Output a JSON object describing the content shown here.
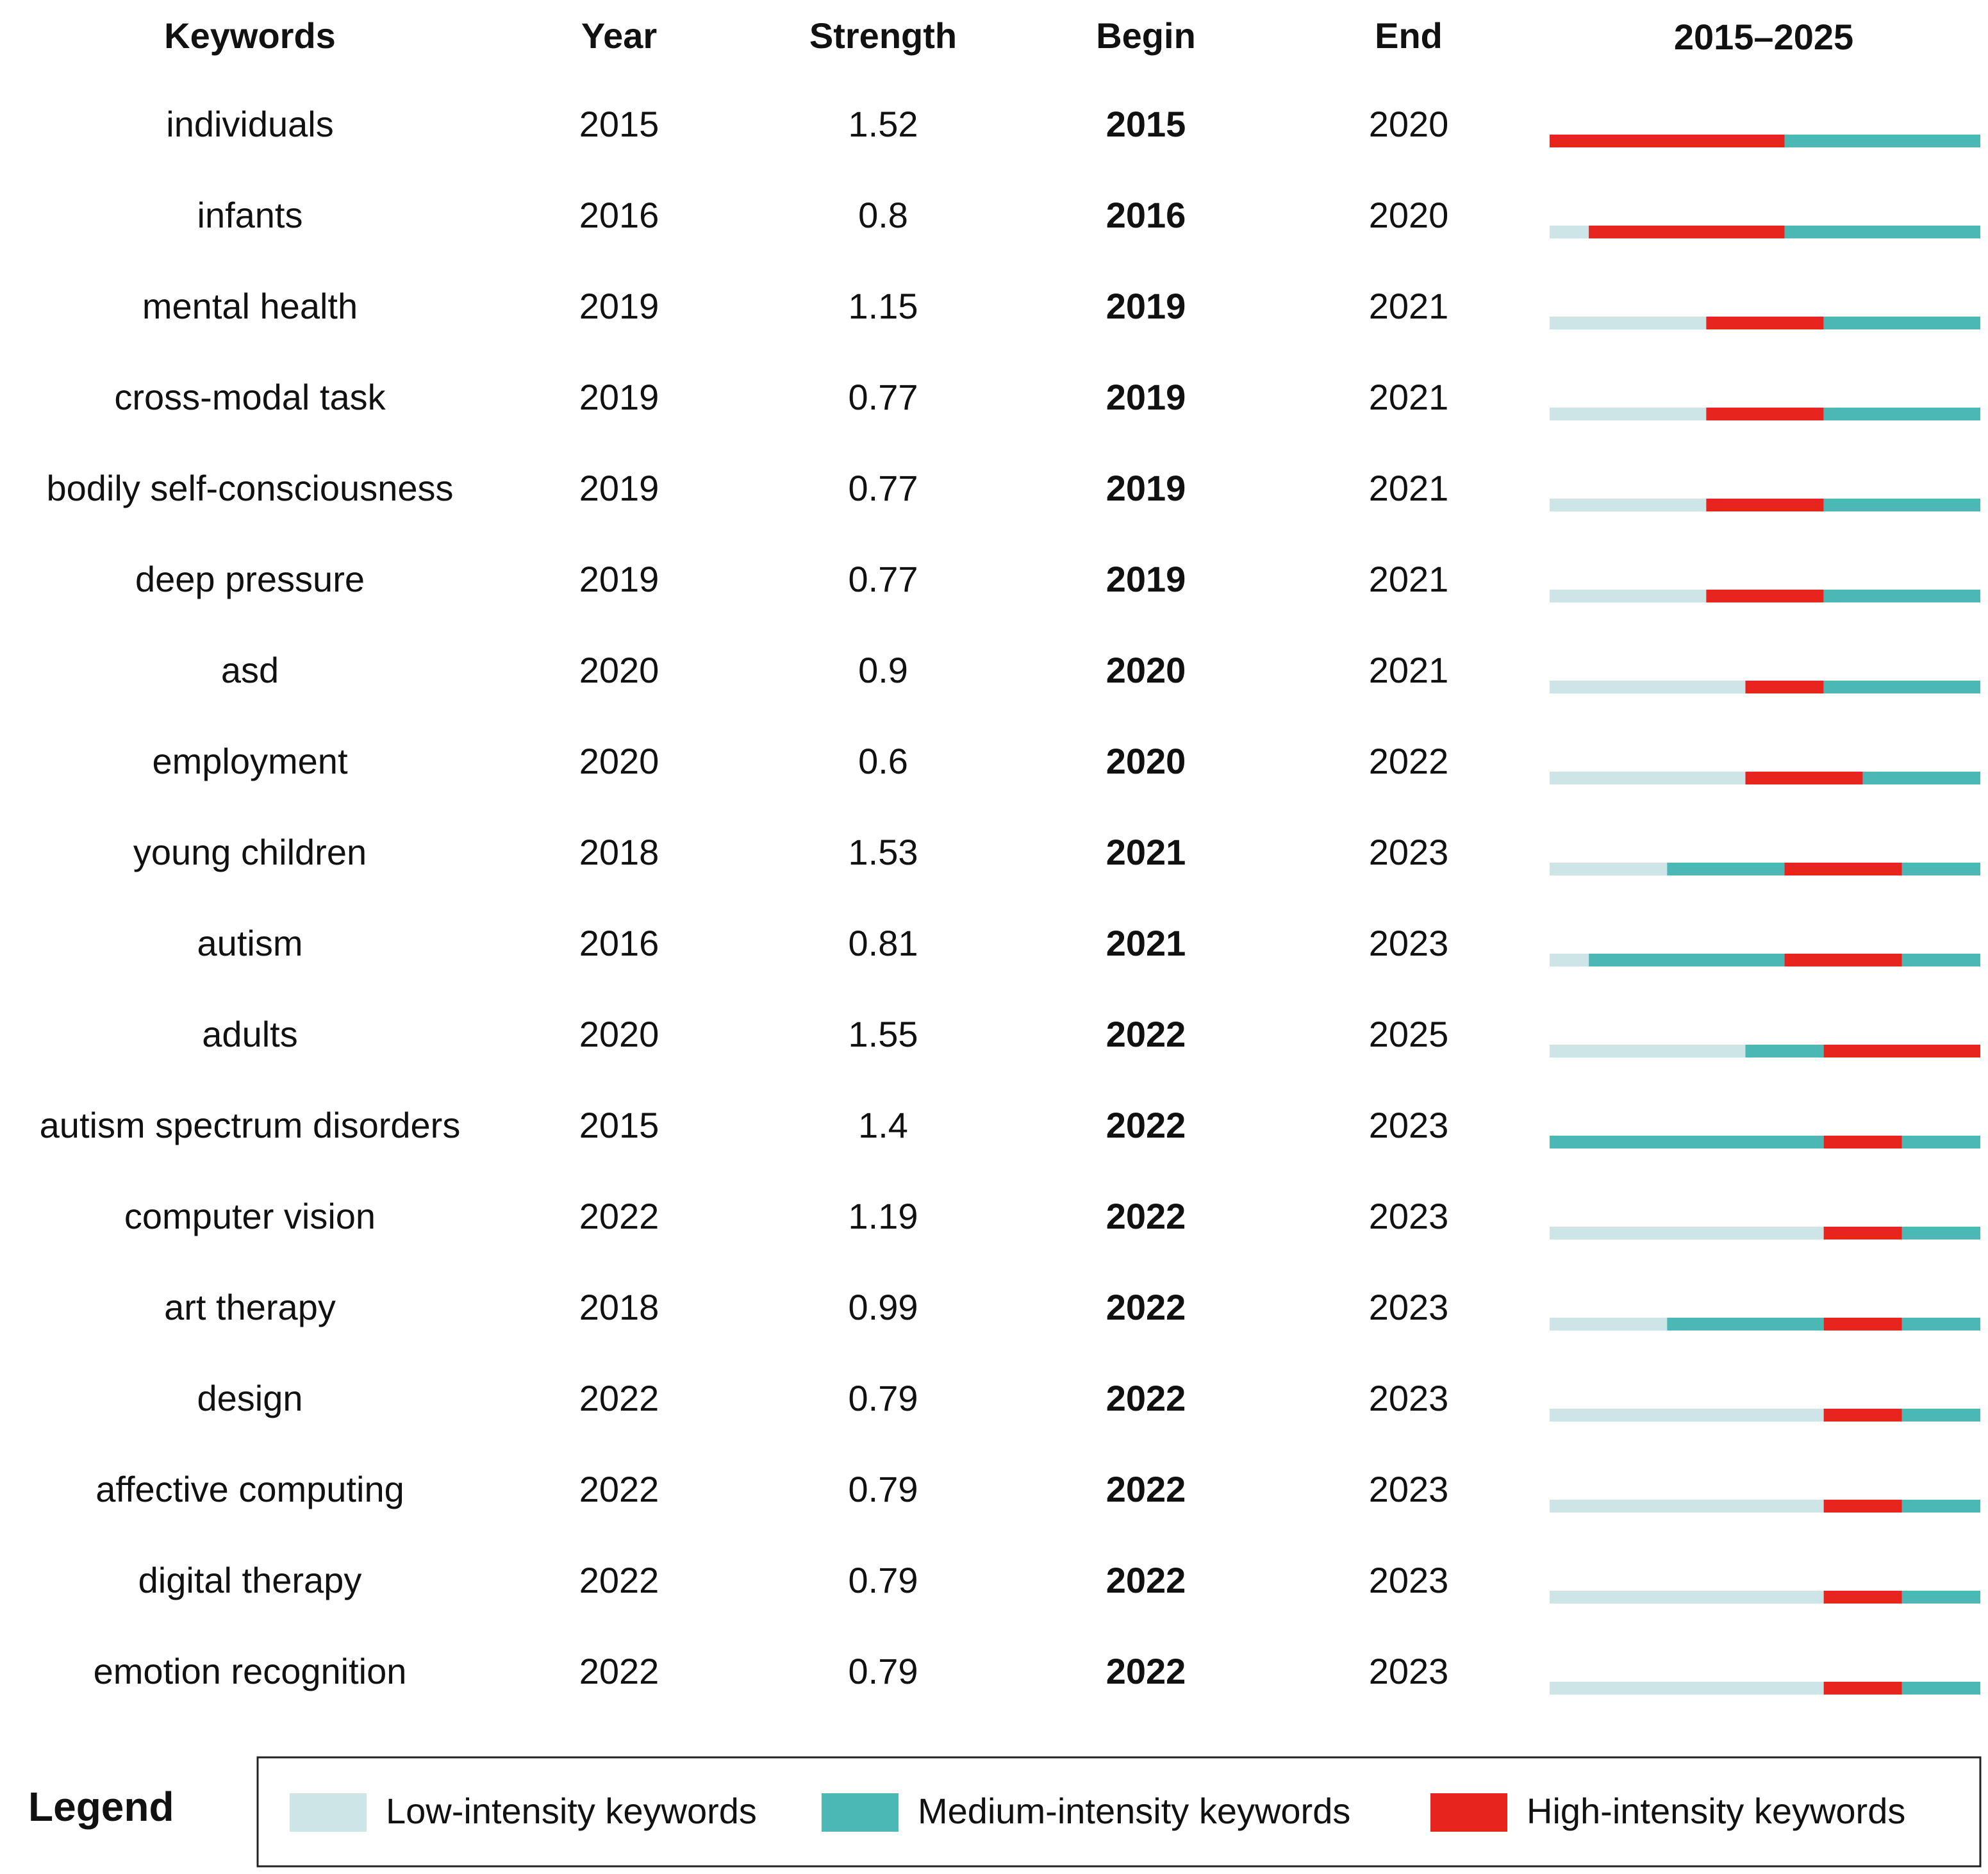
{
  "header": {
    "keywords": "Keywords",
    "year": "Year",
    "strength": "Strength",
    "begin": "Begin",
    "end": "End",
    "timeline": "2015–2025"
  },
  "timeline_range": [
    2015,
    2025
  ],
  "rows": [
    {
      "keyword": "individuals",
      "year": 2015,
      "strength": 1.52,
      "begin": 2015,
      "end": 2020
    },
    {
      "keyword": "infants",
      "year": 2016,
      "strength": 0.8,
      "begin": 2016,
      "end": 2020
    },
    {
      "keyword": "mental health",
      "year": 2019,
      "strength": 1.15,
      "begin": 2019,
      "end": 2021
    },
    {
      "keyword": "cross-modal task",
      "year": 2019,
      "strength": 0.77,
      "begin": 2019,
      "end": 2021
    },
    {
      "keyword": "bodily self-consciousness",
      "year": 2019,
      "strength": 0.77,
      "begin": 2019,
      "end": 2021
    },
    {
      "keyword": "deep pressure",
      "year": 2019,
      "strength": 0.77,
      "begin": 2019,
      "end": 2021
    },
    {
      "keyword": "asd",
      "year": 2020,
      "strength": 0.9,
      "begin": 2020,
      "end": 2021
    },
    {
      "keyword": "employment",
      "year": 2020,
      "strength": 0.6,
      "begin": 2020,
      "end": 2022
    },
    {
      "keyword": "young children",
      "year": 2018,
      "strength": 1.53,
      "begin": 2021,
      "end": 2023
    },
    {
      "keyword": "autism",
      "year": 2016,
      "strength": 0.81,
      "begin": 2021,
      "end": 2023
    },
    {
      "keyword": "adults",
      "year": 2020,
      "strength": 1.55,
      "begin": 2022,
      "end": 2025
    },
    {
      "keyword": "autism spectrum disorders",
      "year": 2015,
      "strength": 1.4,
      "begin": 2022,
      "end": 2023
    },
    {
      "keyword": "computer vision",
      "year": 2022,
      "strength": 1.19,
      "begin": 2022,
      "end": 2023
    },
    {
      "keyword": "art therapy",
      "year": 2018,
      "strength": 0.99,
      "begin": 2022,
      "end": 2023
    },
    {
      "keyword": "design",
      "year": 2022,
      "strength": 0.79,
      "begin": 2022,
      "end": 2023
    },
    {
      "keyword": "affective computing",
      "year": 2022,
      "strength": 0.79,
      "begin": 2022,
      "end": 2023
    },
    {
      "keyword": "digital therapy",
      "year": 2022,
      "strength": 0.79,
      "begin": 2022,
      "end": 2023
    },
    {
      "keyword": "emotion recognition",
      "year": 2022,
      "strength": 0.79,
      "begin": 2022,
      "end": 2023
    }
  ],
  "colors": {
    "low": "#cde5e6",
    "medium": "#4bb8b6",
    "high": "#e8241f"
  },
  "legend": {
    "title": "Legend",
    "items": [
      {
        "label": "Low-intensity keywords",
        "color": "#cde5e6"
      },
      {
        "label": "Medium-intensity keywords",
        "color": "#4bb8b6"
      },
      {
        "label": "High-intensity keywords",
        "color": "#e8241f"
      }
    ]
  }
}
